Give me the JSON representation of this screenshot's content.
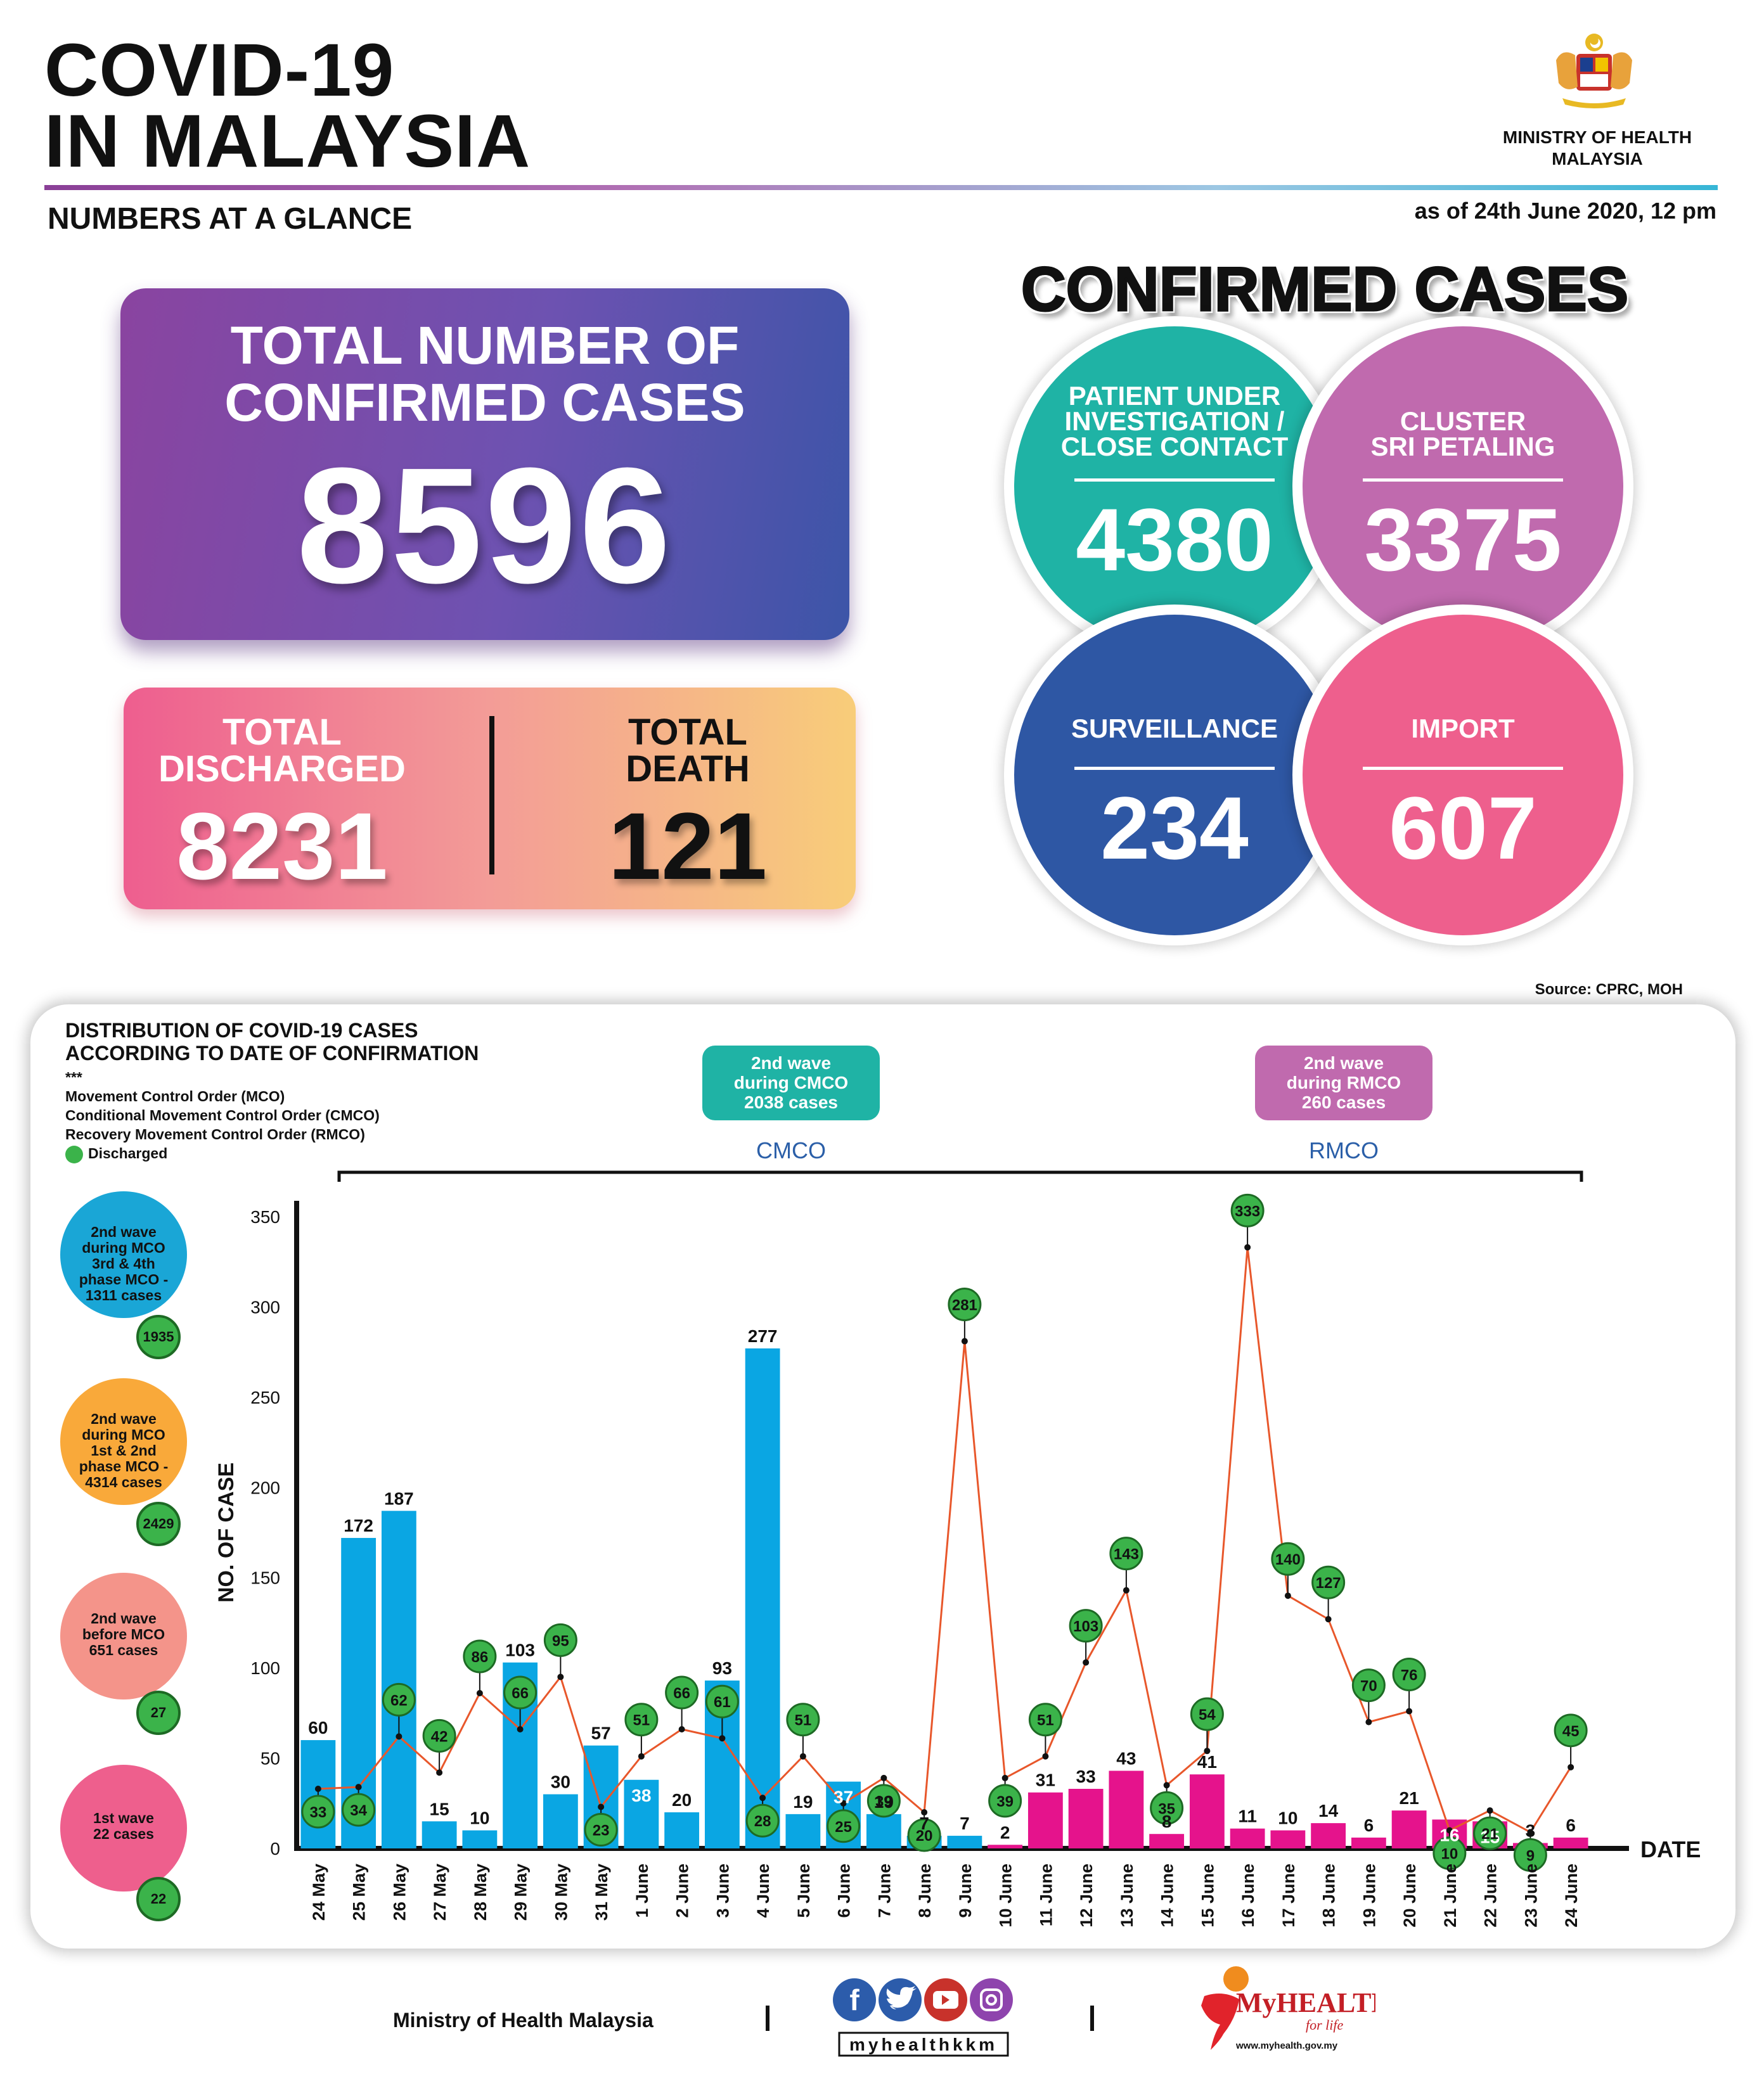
{
  "header": {
    "title_line1": "COVID-19",
    "title_line2": "IN MALAYSIA",
    "ministry_line1": "MINISTRY OF HEALTH",
    "ministry_line2": "MALAYSIA",
    "subtitle": "NUMBERS AT A GLANCE",
    "as_of": "as of 24th June 2020, 12 pm"
  },
  "totals": {
    "confirmed_label_line1": "TOTAL NUMBER OF",
    "confirmed_label_line2": "CONFIRMED CASES",
    "confirmed_value": "8596",
    "discharged_label_line1": "TOTAL",
    "discharged_label_line2": "DISCHARGED",
    "discharged_value": "8231",
    "death_label_line1": "TOTAL",
    "death_label_line2": "DEATH",
    "death_value": "121"
  },
  "confirmed_breakdown": {
    "title": "CONFIRMED CASES",
    "pui": {
      "line1": "PATIENT UNDER",
      "line2": "INVESTIGATION /",
      "line3": "CLOSE CONTACT",
      "value": "4380",
      "color": "#1fb3a5"
    },
    "cluster": {
      "line1": "CLUSTER",
      "line2": "SRI PETALING",
      "value": "3375",
      "color": "#c06aae"
    },
    "surveillance": {
      "line1": "SURVEILLANCE",
      "value": "234",
      "color": "#2e57a4"
    },
    "import": {
      "line1": "IMPORT",
      "value": "607",
      "color": "#ee5f8d"
    }
  },
  "source": "Source: CPRC, MOH",
  "chart_section": {
    "title_line1": "DISTRIBUTION OF COVID-19 CASES",
    "title_line2": "ACCORDING TO DATE OF CONFIRMATION",
    "stars": "***",
    "legend_mco": "Movement Control Order (MCO)",
    "legend_cmco": "Conditional Movement Control Order (CMCO)",
    "legend_rmco": "Recovery Movement Control Order (RMCO)",
    "legend_discharged": "Discharged",
    "cmco_tag": {
      "line1": "2nd wave",
      "line2": "during CMCO",
      "line3": "2038 cases",
      "color": "#1fb3a5"
    },
    "rmco_tag": {
      "line1": "2nd wave",
      "line2": "during RMCO",
      "line3": "260 cases",
      "color": "#c06aae"
    },
    "cmco_label": "CMCO",
    "rmco_label": "RMCO"
  },
  "side_waves": [
    {
      "line1": "2nd wave",
      "line2": "during MCO",
      "line3": "3rd & 4th",
      "line4": "phase MCO -",
      "line5": "1311 cases",
      "discharged": "1935",
      "color": "#1aa6d6"
    },
    {
      "line1": "2nd wave",
      "line2": "during MCO",
      "line3": "1st & 2nd",
      "line4": "phase MCO -",
      "line5": "4314 cases",
      "discharged": "2429",
      "color": "#f9a93a"
    },
    {
      "line1": "2nd wave",
      "line2": "before MCO",
      "line3": "651 cases",
      "line4": "",
      "line5": "",
      "discharged": "27",
      "color": "#f4948a"
    },
    {
      "line1": "1st wave",
      "line2": "22 cases",
      "line3": "",
      "line4": "",
      "line5": "",
      "discharged": "22",
      "color": "#ee5f8d"
    }
  ],
  "chart_data": {
    "type": "bar",
    "ylabel": "NO. OF CASE",
    "xlabel": "DATE",
    "ylim": [
      0,
      350
    ],
    "yticks": [
      0,
      50,
      100,
      150,
      200,
      250,
      300,
      350
    ],
    "categories": [
      "24 May",
      "25 May",
      "26 May",
      "27 May",
      "28 May",
      "29 May",
      "30 May",
      "31 May",
      "1 June",
      "2 June",
      "3 June",
      "4 June",
      "5 June",
      "6 June",
      "7 June",
      "8 June",
      "9 June",
      "10 June",
      "11 June",
      "12 June",
      "13 June",
      "14 June",
      "15 June",
      "16 June",
      "17 June",
      "18 June",
      "19 June",
      "20 June",
      "21 June",
      "22 June",
      "23 June",
      "24 June"
    ],
    "series": [
      {
        "values": [
          60,
          172,
          187,
          15,
          10,
          103,
          30,
          57,
          38,
          20,
          93,
          277,
          19,
          37,
          19,
          7,
          7,
          2,
          31,
          33,
          43,
          8,
          41,
          11,
          10,
          14,
          6,
          21,
          16,
          15,
          3,
          6
        ]
      },
      {
        "name": "Discharged",
        "values": [
          33,
          34,
          62,
          42,
          86,
          66,
          95,
          23,
          51,
          66,
          61,
          28,
          51,
          25,
          39,
          20,
          281,
          39,
          51,
          103,
          143,
          35,
          54,
          333,
          140,
          127,
          70,
          76,
          10,
          21,
          9,
          45
        ]
      }
    ],
    "bar_colors": {
      "cmco": "#0aa6e3",
      "rmco": "#e5138c"
    },
    "line_color": "#e8572b",
    "discharged_marker_color": "#3bb34a",
    "rmco_start_index": 17
  },
  "footer": {
    "ministry": "Ministry of Health Malaysia",
    "social_handle": "myhealthkkm",
    "myhealth": "MyHEALTH",
    "myhealth_tag": "for life",
    "myhealth_url": "www.myhealth.gov.my"
  }
}
